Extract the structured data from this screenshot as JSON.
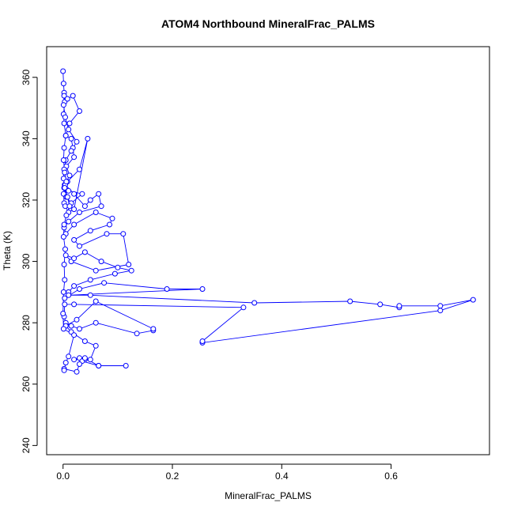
{
  "chart_data": {
    "type": "scatter",
    "title": "ATOM4 Northbound MineralFrac_PALMS",
    "xlabel": "MineralFrac_PALMS",
    "ylabel": "Theta (K)",
    "xlim": [
      -0.03,
      0.78
    ],
    "ylim": [
      237,
      370
    ],
    "xticks": [
      0.0,
      0.2,
      0.4,
      0.6
    ],
    "xtick_labels": [
      "0.0",
      "0.2",
      "0.4",
      "0.6"
    ],
    "yticks": [
      240,
      260,
      280,
      300,
      320,
      340,
      360
    ],
    "ytick_labels": [
      "240",
      "260",
      "280",
      "300",
      "320",
      "340",
      "360"
    ],
    "grid": false,
    "connect_points": true,
    "color": "#0000ff",
    "marker": "open-circle",
    "series": [
      {
        "name": "",
        "x": [
          0.0,
          0.001,
          0.002,
          0.003,
          0.001,
          0.002,
          0.005,
          0.015,
          0.018,
          0.02,
          0.006,
          0.012,
          0.003,
          0.001,
          0.002,
          0.004,
          0.01,
          0.02,
          0.045,
          0.03,
          0.008,
          0.002,
          0.006,
          0.015,
          0.035,
          0.01,
          0.004,
          0.02,
          0.04,
          0.05,
          0.065,
          0.07,
          0.03,
          0.01,
          0.002,
          0.005,
          0.02,
          0.06,
          0.09,
          0.085,
          0.05,
          0.02,
          0.03,
          0.08,
          0.11,
          0.12,
          0.06,
          0.015,
          0.005,
          0.02,
          0.04,
          0.07,
          0.1,
          0.125,
          0.095,
          0.05,
          0.02,
          0.01,
          0.003,
          0.03,
          0.075,
          0.19,
          0.255,
          0.01,
          0.05,
          0.35,
          0.525,
          0.58,
          0.615,
          0.615,
          0.69,
          0.75,
          0.69,
          0.255,
          0.255,
          0.33,
          0.02,
          0.003,
          0.002,
          0.005,
          0.015,
          0.03,
          0.06,
          0.135,
          0.165,
          0.165,
          0.06,
          0.025,
          0.005,
          0.015,
          0.04,
          0.06,
          0.05,
          0.03,
          0.02,
          0.04,
          0.035,
          0.065,
          0.115,
          0.065,
          0.04,
          0.03,
          0.025,
          0.002,
          0.002,
          0.005,
          0.01,
          0.02,
          0.001,
          0.0,
          0.001,
          0.003,
          0.002,
          0.004,
          0.001,
          0.002,
          0.006,
          0.012,
          0.008,
          0.003,
          0.001,
          0.002,
          0.005,
          0.015,
          0.025,
          0.01,
          0.004,
          0.001,
          0.002,
          0.008,
          0.018,
          0.03,
          0.012,
          0.005,
          0.002,
          0.001,
          0.003,
          0.006
        ],
        "y": [
          362,
          358,
          355,
          352,
          348,
          345,
          341,
          340,
          337,
          334,
          331,
          328,
          325,
          322,
          319,
          318,
          316,
          317,
          340,
          330,
          326,
          324,
          321,
          319,
          322,
          323,
          325,
          322,
          318,
          320,
          322,
          318,
          316,
          313,
          311,
          309,
          312,
          316,
          314,
          312,
          310,
          307,
          305,
          309,
          309,
          299,
          297,
          300,
          302,
          301,
          303,
          300,
          298,
          297,
          296,
          294,
          292,
          290,
          288,
          291,
          293,
          291,
          291,
          289,
          289,
          286.5,
          287,
          286,
          285,
          285.5,
          285.5,
          287.5,
          284,
          273.5,
          274,
          285,
          286,
          286,
          282,
          280,
          279,
          278,
          280,
          276.5,
          277.5,
          278,
          287,
          281,
          279,
          277,
          274,
          272.5,
          268,
          268.5,
          268,
          268,
          267.5,
          266,
          266,
          266,
          268.5,
          266.5,
          264,
          265,
          264.5,
          267,
          269,
          276,
          278,
          283,
          290,
          294,
          299,
          304,
          308,
          312,
          315,
          318,
          321,
          324,
          327,
          330,
          333,
          336,
          339,
          343,
          347,
          351,
          354,
          353,
          354,
          349,
          345,
          341,
          337,
          333,
          329,
          326
        ]
      }
    ]
  }
}
